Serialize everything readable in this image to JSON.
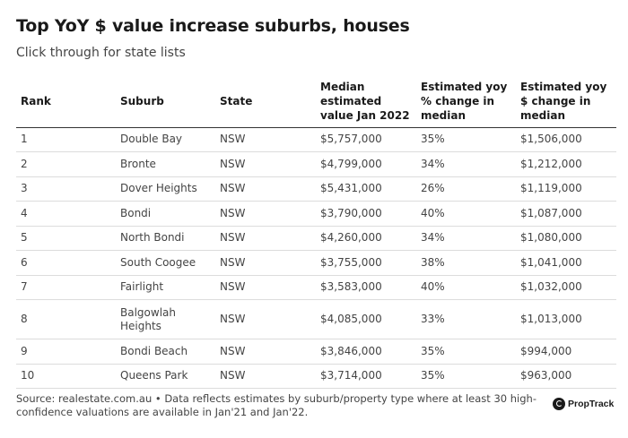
{
  "header": {
    "title": "Top YoY $ value increase suburbs, houses",
    "subtitle": "Click through for state lists"
  },
  "table": {
    "columns": [
      "Rank",
      "Suburb",
      "State",
      "Median estimated value Jan 2022",
      "Estimated yoy % change in median",
      "Estimated yoy $ change in median"
    ],
    "rows": [
      [
        "1",
        "Double Bay",
        "NSW",
        "$5,757,000",
        "35%",
        "$1,506,000"
      ],
      [
        "2",
        "Bronte",
        "NSW",
        "$4,799,000",
        "34%",
        "$1,212,000"
      ],
      [
        "3",
        "Dover Heights",
        "NSW",
        "$5,431,000",
        "26%",
        "$1,119,000"
      ],
      [
        "4",
        "Bondi",
        "NSW",
        "$3,790,000",
        "40%",
        "$1,087,000"
      ],
      [
        "5",
        "North Bondi",
        "NSW",
        "$4,260,000",
        "34%",
        "$1,080,000"
      ],
      [
        "6",
        "South Coogee",
        "NSW",
        "$3,755,000",
        "38%",
        "$1,041,000"
      ],
      [
        "7",
        "Fairlight",
        "NSW",
        "$3,583,000",
        "40%",
        "$1,032,000"
      ],
      [
        "8",
        "Balgowlah Heights",
        "NSW",
        "$4,085,000",
        "33%",
        "$1,013,000"
      ],
      [
        "9",
        "Bondi Beach",
        "NSW",
        "$3,846,000",
        "35%",
        "$994,000"
      ],
      [
        "10",
        "Queens Park",
        "NSW",
        "$3,714,000",
        "35%",
        "$963,000"
      ]
    ]
  },
  "footer": {
    "source": "Source: realestate.com.au • Data reflects estimates by suburb/property type where at least 30 high-confidence valuations are available in Jan'21 and Jan'22.",
    "logo_text": "PropTrack",
    "logo_icon": "proptrack-logo-icon"
  }
}
